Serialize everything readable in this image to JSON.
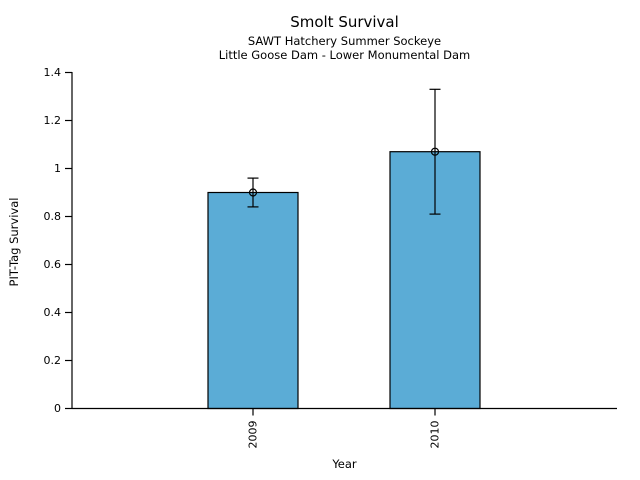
{
  "chart_data": {
    "type": "bar",
    "title": "Smolt Survival",
    "subtitle1": "SAWT Hatchery Summer Sockeye",
    "subtitle2": "Little Goose Dam - Lower Monumental Dam",
    "xlabel": "Year",
    "ylabel": "PIT-Tag Survival",
    "categories": [
      "2009",
      "2010"
    ],
    "values": [
      0.9,
      1.07
    ],
    "error_low": [
      0.84,
      0.81
    ],
    "error_high": [
      0.96,
      1.33
    ],
    "ylim": [
      0,
      1.4
    ],
    "ytick_labels": [
      "0",
      "0.2",
      "0.4",
      "0.6",
      "0.8",
      "1",
      "1.2",
      "1.4"
    ],
    "ytick_values": [
      0,
      0.2,
      0.4,
      0.6,
      0.8,
      1.0,
      1.2,
      1.4
    ],
    "grid": false,
    "legend": "none",
    "bar_color": "#5BACD6",
    "axis_color": "#000000",
    "marker": "open-circle"
  }
}
